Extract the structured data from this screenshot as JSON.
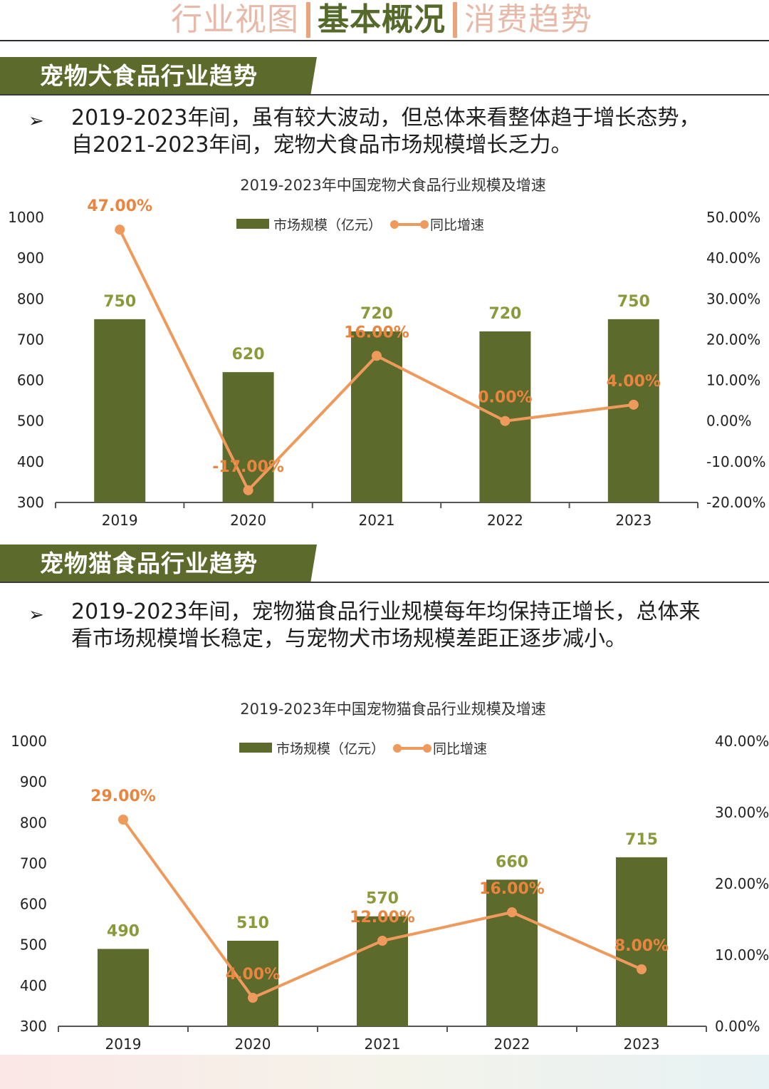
{
  "nav": {
    "tabs": [
      "行业视图",
      "基本概况",
      "消费趋势"
    ],
    "active": 1
  },
  "section1": {
    "title": "宠物犬食品行业趋势",
    "bullet": [
      "2019-2023年间，虽有较大波动，但总体来看整体趋于增长态势，",
      "自2021-2023年间，宠物犬食品市场规模增长乏力。"
    ]
  },
  "section2": {
    "title": "宠物猫食品行业趋势",
    "bullet": [
      "2019-2023年间，宠物猫食品行业规模每年均保持正增长，总体来",
      "看市场规模增长稳定，与宠物犬市场规模差距正逐步减小。"
    ]
  },
  "colors": {
    "bar": "#5c6b2c",
    "line": "#ee9a5c",
    "bar_label": "#8a9a3a",
    "line_label": "#e9853f",
    "banner": "#5c6b2c"
  },
  "chart_data": [
    {
      "type": "bar+line",
      "title": "2019-2023年中国宠物犬食品行业规模及增速",
      "categories": [
        "2019",
        "2020",
        "2021",
        "2022",
        "2023"
      ],
      "series": [
        {
          "name": "市场规模（亿元）",
          "type": "bar",
          "axis": "left",
          "values": [
            750,
            620,
            720,
            720,
            750
          ],
          "labels": [
            "750",
            "620",
            "720",
            "720",
            "750"
          ]
        },
        {
          "name": "同比增速",
          "type": "line",
          "axis": "right",
          "values": [
            47.0,
            -17.0,
            16.0,
            0.0,
            4.0
          ],
          "labels": [
            "47.00%",
            "-17.00%",
            "16.00%",
            "0.00%",
            "4.00%"
          ]
        }
      ],
      "ylim_left": [
        300,
        1000
      ],
      "yticks_left": [
        "1000",
        "900",
        "800",
        "700",
        "600",
        "500",
        "400",
        "300"
      ],
      "ylim_right": [
        -20,
        50
      ],
      "yticks_right": [
        "50.00%",
        "40.00%",
        "30.00%",
        "20.00%",
        "10.00%",
        "0.00%",
        "-10.00%",
        "-20.00%"
      ],
      "legend_position": "top-center",
      "grid": false
    },
    {
      "type": "bar+line",
      "title": "2019-2023年中国宠物猫食品行业规模及增速",
      "categories": [
        "2019",
        "2020",
        "2021",
        "2022",
        "2023"
      ],
      "series": [
        {
          "name": "市场规模（亿元）",
          "type": "bar",
          "axis": "left",
          "values": [
            490,
            510,
            570,
            660,
            715
          ],
          "labels": [
            "490",
            "510",
            "570",
            "660",
            "715"
          ]
        },
        {
          "name": "同比增速",
          "type": "line",
          "axis": "right",
          "values": [
            29.0,
            4.0,
            12.0,
            16.0,
            8.0
          ],
          "labels": [
            "29.00%",
            "4.00%",
            "12.00%",
            "16.00%",
            "8.00%"
          ]
        }
      ],
      "ylim_left": [
        300,
        1000
      ],
      "yticks_left": [
        "1000",
        "900",
        "800",
        "700",
        "600",
        "500",
        "400",
        "300"
      ],
      "ylim_right": [
        0,
        40
      ],
      "yticks_right": [
        "40.00%",
        "30.00%",
        "20.00%",
        "10.00%",
        "0.00%"
      ],
      "legend_position": "top-center",
      "grid": false
    }
  ]
}
